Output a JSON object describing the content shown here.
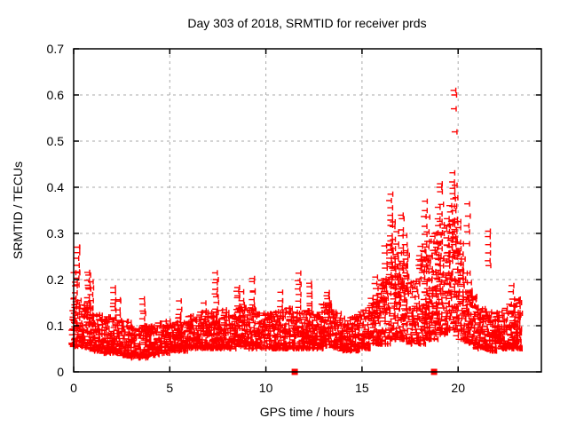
{
  "chart_data": {
    "type": "scatter",
    "title": "Day 303 of 2018, SRMTID for receiver prds",
    "xlabel": "GPS time / hours",
    "ylabel": "SRMTID / TECUs",
    "xlim": [
      0,
      24.33
    ],
    "ylim": [
      0,
      0.7
    ],
    "xticks": [
      0,
      5,
      10,
      15,
      20
    ],
    "xtick_labels": [
      "0",
      "5",
      "10",
      "15",
      "20"
    ],
    "yticks": [
      0,
      0.1,
      0.2,
      0.3,
      0.4,
      0.5,
      0.6,
      0.7
    ],
    "ytick_labels": [
      "0",
      "0.1",
      "0.2",
      "0.3",
      "0.4",
      "0.5",
      "0.6",
      "0.7"
    ],
    "grid": true,
    "grid_style": "dashed",
    "grid_color": "#aaaaaa",
    "axis_color": "#000000",
    "legend": "none",
    "marker": "plus",
    "marker_color": "#ff0000",
    "series_name": "SRMTID per-epoch values",
    "profile_note": "band_profile rows=[t_start,t_end,n_points,y_min,y_max]; spike_columns rows=[t_center,y_min,y_max,n_points]; outliers rows=[t,y]; zero_markers=t of red squares at y=0",
    "seed": 20181030,
    "band_profile": [
      [
        0.0,
        0.5,
        60,
        0.055,
        0.16
      ],
      [
        0.5,
        1.0,
        60,
        0.05,
        0.15
      ],
      [
        1.0,
        1.5,
        60,
        0.045,
        0.13
      ],
      [
        1.5,
        2.0,
        60,
        0.04,
        0.12
      ],
      [
        2.0,
        2.5,
        60,
        0.04,
        0.12
      ],
      [
        2.5,
        3.0,
        58,
        0.035,
        0.11
      ],
      [
        3.0,
        3.5,
        58,
        0.03,
        0.1
      ],
      [
        3.5,
        4.0,
        58,
        0.03,
        0.1
      ],
      [
        4.0,
        4.5,
        58,
        0.035,
        0.1
      ],
      [
        4.5,
        5.0,
        58,
        0.04,
        0.11
      ],
      [
        5.0,
        5.5,
        60,
        0.045,
        0.115
      ],
      [
        5.5,
        6.0,
        60,
        0.045,
        0.12
      ],
      [
        6.0,
        6.5,
        60,
        0.05,
        0.125
      ],
      [
        6.5,
        7.0,
        60,
        0.05,
        0.13
      ],
      [
        7.0,
        7.5,
        60,
        0.05,
        0.13
      ],
      [
        7.5,
        8.0,
        60,
        0.05,
        0.135
      ],
      [
        8.0,
        8.5,
        60,
        0.05,
        0.13
      ],
      [
        8.5,
        9.0,
        60,
        0.055,
        0.14
      ],
      [
        9.0,
        9.5,
        60,
        0.05,
        0.14
      ],
      [
        9.5,
        10.0,
        60,
        0.05,
        0.13
      ],
      [
        10.0,
        10.5,
        60,
        0.05,
        0.13
      ],
      [
        10.5,
        11.0,
        60,
        0.05,
        0.135
      ],
      [
        11.0,
        11.5,
        60,
        0.05,
        0.14
      ],
      [
        11.5,
        12.0,
        60,
        0.05,
        0.14
      ],
      [
        12.0,
        12.5,
        60,
        0.05,
        0.135
      ],
      [
        12.5,
        13.0,
        60,
        0.05,
        0.13
      ],
      [
        13.0,
        13.5,
        60,
        0.055,
        0.15
      ],
      [
        13.5,
        14.0,
        60,
        0.05,
        0.13
      ],
      [
        14.0,
        14.5,
        56,
        0.045,
        0.12
      ],
      [
        14.5,
        15.0,
        56,
        0.045,
        0.125
      ],
      [
        15.0,
        15.5,
        60,
        0.05,
        0.14
      ],
      [
        15.5,
        16.0,
        62,
        0.06,
        0.17
      ],
      [
        16.0,
        16.5,
        62,
        0.06,
        0.2
      ],
      [
        16.5,
        17.0,
        66,
        0.07,
        0.28
      ],
      [
        17.0,
        17.5,
        66,
        0.07,
        0.26
      ],
      [
        17.5,
        18.0,
        62,
        0.06,
        0.2
      ],
      [
        18.0,
        18.5,
        66,
        0.06,
        0.28
      ],
      [
        18.5,
        19.0,
        66,
        0.07,
        0.3
      ],
      [
        19.0,
        19.5,
        66,
        0.08,
        0.32
      ],
      [
        19.5,
        20.0,
        70,
        0.09,
        0.33
      ],
      [
        20.0,
        20.5,
        66,
        0.07,
        0.28
      ],
      [
        20.5,
        21.0,
        62,
        0.06,
        0.18
      ],
      [
        21.0,
        21.5,
        60,
        0.05,
        0.14
      ],
      [
        21.5,
        22.0,
        60,
        0.045,
        0.13
      ],
      [
        22.0,
        22.5,
        60,
        0.05,
        0.13
      ],
      [
        22.5,
        23.0,
        60,
        0.05,
        0.15
      ],
      [
        23.0,
        23.35,
        52,
        0.05,
        0.16
      ]
    ],
    "spike_columns": [
      [
        0.15,
        0.1,
        0.21,
        10
      ],
      [
        0.3,
        0.19,
        0.265,
        8
      ],
      [
        0.85,
        0.15,
        0.215,
        9
      ],
      [
        1.0,
        0.13,
        0.19,
        6
      ],
      [
        2.2,
        0.12,
        0.18,
        7
      ],
      [
        2.45,
        0.11,
        0.16,
        5
      ],
      [
        3.7,
        0.1,
        0.16,
        6
      ],
      [
        5.6,
        0.1,
        0.15,
        5
      ],
      [
        6.9,
        0.1,
        0.15,
        5
      ],
      [
        7.5,
        0.13,
        0.21,
        9
      ],
      [
        8.6,
        0.12,
        0.185,
        8
      ],
      [
        8.85,
        0.11,
        0.17,
        6
      ],
      [
        9.4,
        0.13,
        0.205,
        7
      ],
      [
        10.9,
        0.12,
        0.17,
        6
      ],
      [
        11.8,
        0.13,
        0.21,
        8
      ],
      [
        12.4,
        0.12,
        0.19,
        8
      ],
      [
        13.3,
        0.12,
        0.17,
        7
      ],
      [
        15.8,
        0.13,
        0.2,
        7
      ],
      [
        16.3,
        0.14,
        0.27,
        9
      ],
      [
        16.55,
        0.2,
        0.375,
        12
      ],
      [
        16.7,
        0.15,
        0.33,
        10
      ],
      [
        16.9,
        0.12,
        0.3,
        8
      ],
      [
        17.15,
        0.18,
        0.345,
        10
      ],
      [
        17.35,
        0.15,
        0.3,
        8
      ],
      [
        18.35,
        0.08,
        0.37,
        16
      ],
      [
        18.5,
        0.1,
        0.33,
        12
      ],
      [
        18.65,
        0.08,
        0.25,
        8
      ],
      [
        18.95,
        0.12,
        0.3,
        10
      ],
      [
        19.1,
        0.18,
        0.355,
        10
      ],
      [
        19.2,
        0.28,
        0.41,
        7
      ],
      [
        19.55,
        0.15,
        0.33,
        10
      ],
      [
        19.7,
        0.2,
        0.36,
        10
      ],
      [
        19.85,
        0.28,
        0.43,
        12
      ],
      [
        19.95,
        0.22,
        0.4,
        9
      ],
      [
        20.1,
        0.15,
        0.33,
        9
      ],
      [
        20.3,
        0.12,
        0.28,
        8
      ],
      [
        20.6,
        0.28,
        0.36,
        5
      ],
      [
        20.65,
        0.1,
        0.22,
        6
      ],
      [
        21.7,
        0.23,
        0.31,
        6
      ],
      [
        22.9,
        0.1,
        0.185,
        8
      ],
      [
        23.2,
        0.08,
        0.16,
        6
      ]
    ],
    "outliers": [
      [
        19.88,
        0.61
      ],
      [
        19.92,
        0.6
      ],
      [
        19.9,
        0.57
      ],
      [
        19.94,
        0.52
      ],
      [
        0.32,
        0.27
      ],
      [
        16.6,
        0.385
      ],
      [
        19.15,
        0.4
      ],
      [
        23.3,
        0.15
      ]
    ],
    "zero_markers": [
      11.5,
      18.75
    ]
  }
}
